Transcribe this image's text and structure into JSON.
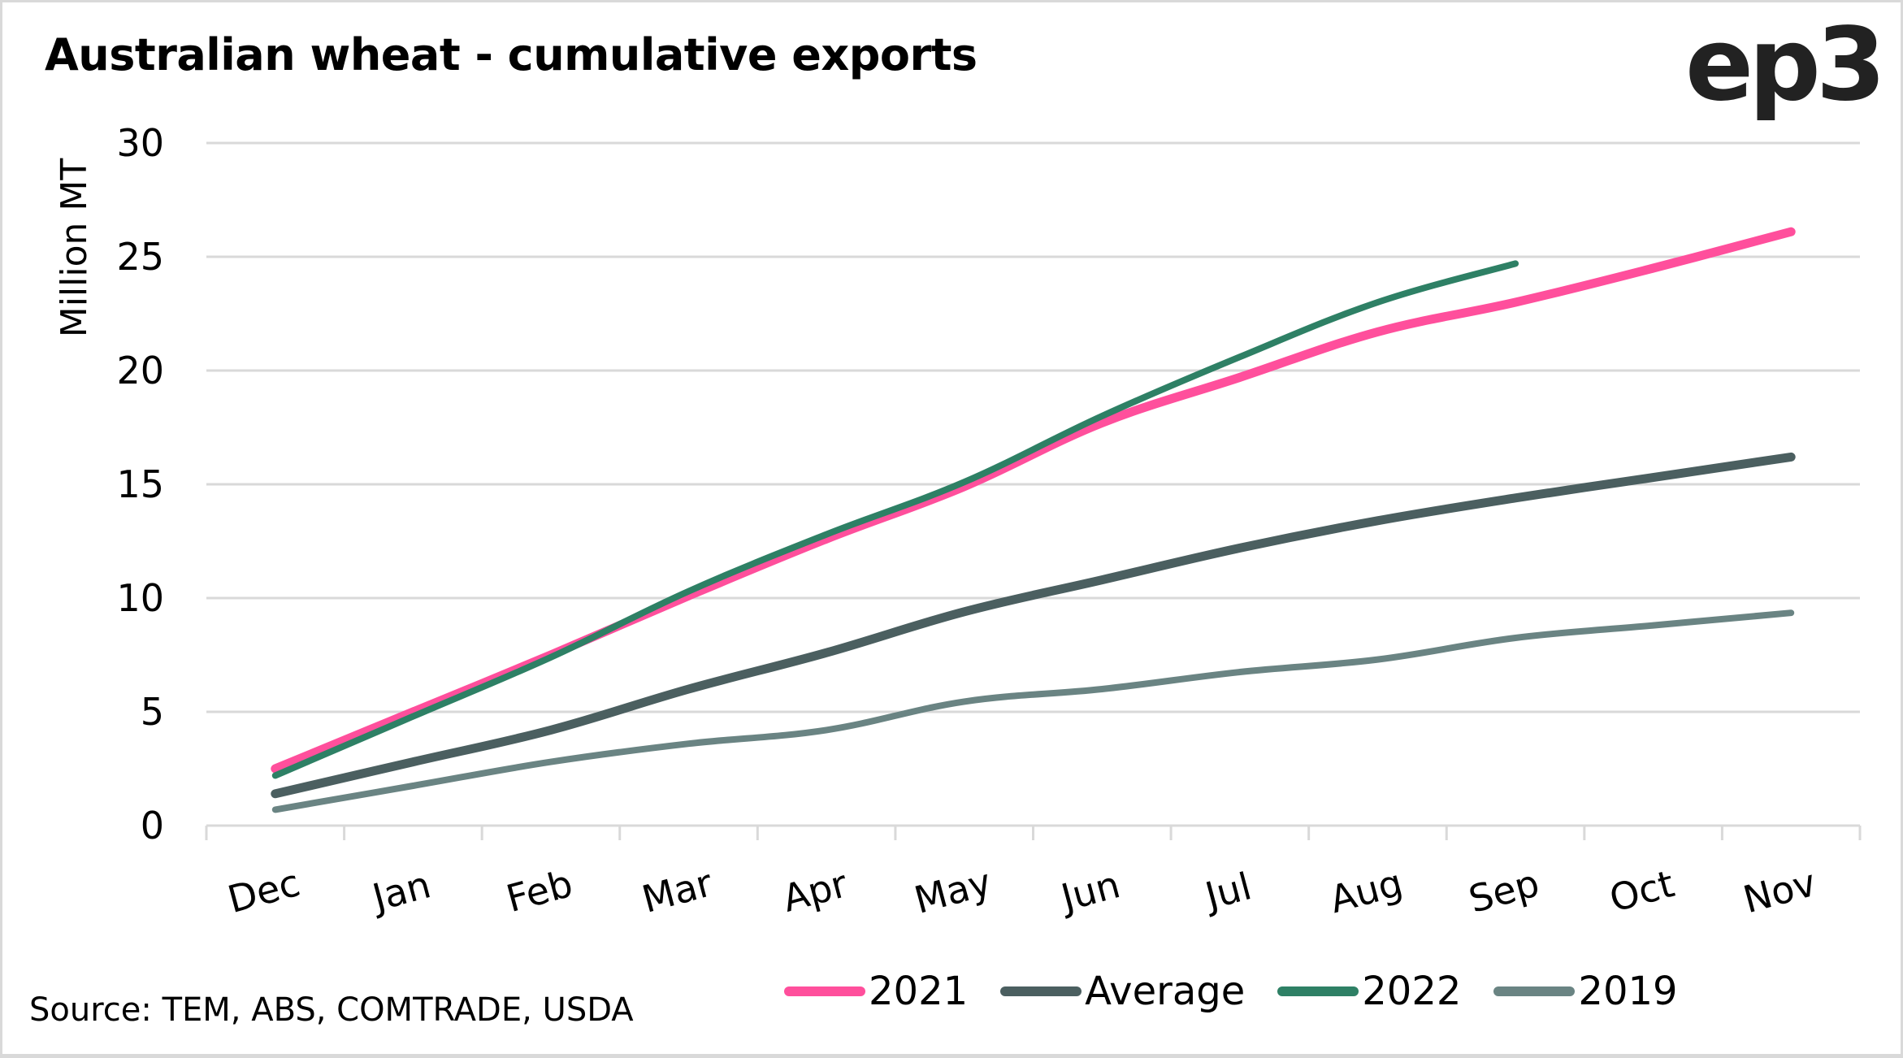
{
  "header": {
    "title": "Australian wheat - cumulative exports",
    "logo": "ep3"
  },
  "footer": {
    "source": "Source: TEM, ABS, COMTRADE, USDA"
  },
  "chart_data": {
    "type": "line",
    "title": "Australian wheat - cumulative exports",
    "xlabel": "",
    "ylabel": "Million MT",
    "categories": [
      "Dec",
      "Jan",
      "Feb",
      "Mar",
      "Apr",
      "May",
      "Jun",
      "Jul",
      "Aug",
      "Sep",
      "Oct",
      "Nov"
    ],
    "ylim": [
      0,
      30
    ],
    "yticks": [
      0,
      5,
      10,
      15,
      20,
      25,
      30
    ],
    "grid": true,
    "legend_position": "bottom",
    "series": [
      {
        "name": "2021",
        "color": "#ff4f9c",
        "width": "thick",
        "values": [
          2.5,
          5.0,
          7.5,
          10.1,
          12.6,
          14.9,
          17.7,
          19.7,
          21.7,
          23.0,
          24.5,
          26.1
        ]
      },
      {
        "name": "Average",
        "color": "#4b5f60",
        "width": "thick",
        "values": [
          1.4,
          2.8,
          4.2,
          6.0,
          7.6,
          9.4,
          10.8,
          12.2,
          13.4,
          14.4,
          15.3,
          16.2
        ]
      },
      {
        "name": "2022",
        "color": "#2e8065",
        "width": "medium",
        "values": [
          2.2,
          4.8,
          7.4,
          10.3,
          12.8,
          15.1,
          18.0,
          20.6,
          23.0,
          24.7,
          null,
          null
        ]
      },
      {
        "name": "2019",
        "color": "#6a8483",
        "width": "medium",
        "values": [
          0.7,
          1.75,
          2.8,
          3.6,
          4.2,
          5.45,
          6.0,
          6.75,
          7.3,
          8.25,
          8.8,
          9.35
        ]
      }
    ],
    "source": "Source: TEM, ABS, COMTRADE, USDA"
  }
}
